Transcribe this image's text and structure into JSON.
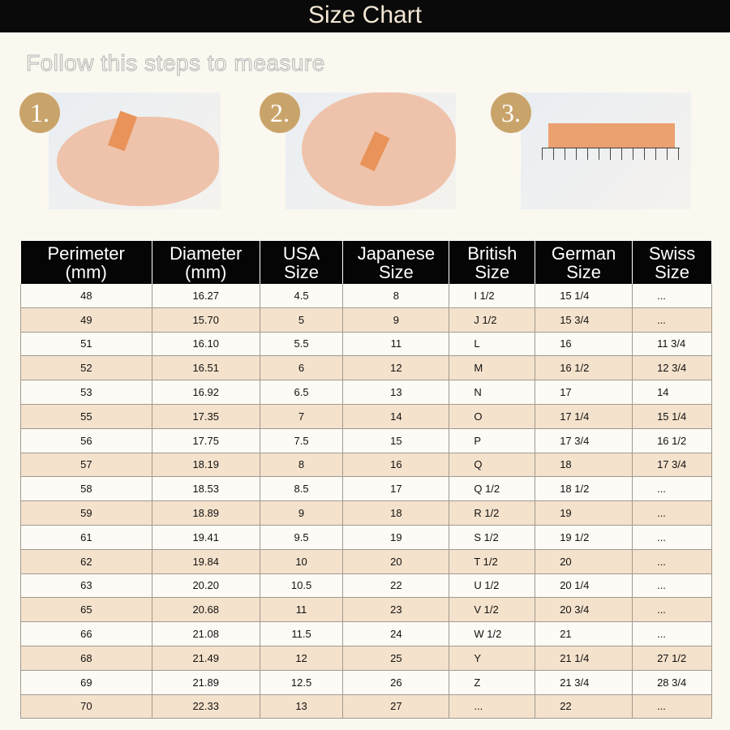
{
  "title": "Size Chart",
  "subtitle": "Follow this steps to measure",
  "steps": [
    "1.",
    "2.",
    "3."
  ],
  "table": {
    "headers": [
      [
        "Perimeter",
        "(mm)"
      ],
      [
        "Diameter",
        "(mm)"
      ],
      [
        "USA",
        "Size"
      ],
      [
        "Japanese",
        "Size"
      ],
      [
        "British",
        "Size"
      ],
      [
        "German",
        "Size"
      ],
      [
        "Swiss",
        "Size"
      ]
    ],
    "rows": [
      [
        "48",
        "16.27",
        "4.5",
        "8",
        "I 1/2",
        "15 1/4",
        "..."
      ],
      [
        "49",
        "15.70",
        "5",
        "9",
        "J 1/2",
        "15 3/4",
        "..."
      ],
      [
        "51",
        "16.10",
        "5.5",
        "11",
        "L",
        "16",
        "11 3/4"
      ],
      [
        "52",
        "16.51",
        "6",
        "12",
        "M",
        "16 1/2",
        "12 3/4"
      ],
      [
        "53",
        "16.92",
        "6.5",
        "13",
        "N",
        "17",
        "14"
      ],
      [
        "55",
        "17.35",
        "7",
        "14",
        "O",
        "17 1/4",
        "15 1/4"
      ],
      [
        "56",
        "17.75",
        "7.5",
        "15",
        "P",
        "17 3/4",
        "16 1/2"
      ],
      [
        "57",
        "18.19",
        "8",
        "16",
        "Q",
        "18",
        "17 3/4"
      ],
      [
        "58",
        "18.53",
        "8.5",
        "17",
        "Q 1/2",
        "18 1/2",
        "..."
      ],
      [
        "59",
        "18.89",
        "9",
        "18",
        "R 1/2",
        "19",
        "..."
      ],
      [
        "61",
        "19.41",
        "9.5",
        "19",
        "S 1/2",
        "19 1/2",
        "..."
      ],
      [
        "62",
        "19.84",
        "10",
        "20",
        "T 1/2",
        "20",
        "..."
      ],
      [
        "63",
        "20.20",
        "10.5",
        "22",
        "U 1/2",
        "20 1/4",
        "..."
      ],
      [
        "65",
        "20.68",
        "11",
        "23",
        "V 1/2",
        "20 3/4",
        "..."
      ],
      [
        "66",
        "21.08",
        "11.5",
        "24",
        "W 1/2",
        "21",
        "..."
      ],
      [
        "68",
        "21.49",
        "12",
        "25",
        "Y",
        "21 1/4",
        "27 1/2"
      ],
      [
        "69",
        "21.89",
        "12.5",
        "26",
        "Z",
        "21 3/4",
        "28 3/4"
      ],
      [
        "70",
        "22.33",
        "13",
        "27",
        "...",
        "22",
        "..."
      ]
    ]
  }
}
